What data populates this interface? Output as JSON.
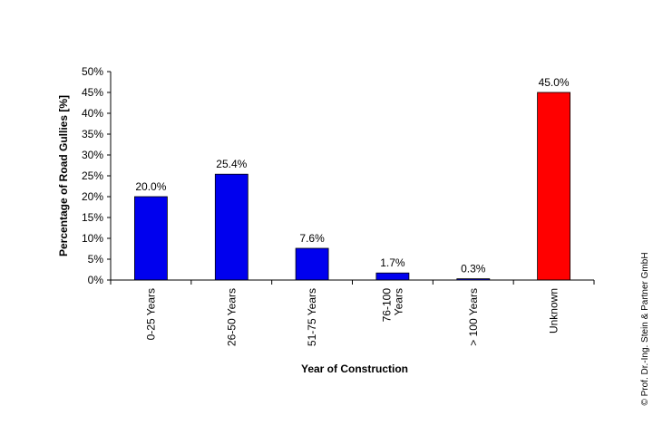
{
  "chart_data": {
    "type": "bar",
    "categories": [
      "0-25 Years",
      "26-50 Years",
      "51-75 Years",
      "76-100 Years",
      "> 100 Years",
      "Unknown"
    ],
    "category_lines": [
      [
        "0-25 Years"
      ],
      [
        "26-50 Years"
      ],
      [
        "51-75 Years"
      ],
      [
        "76-100",
        "Years"
      ],
      [
        "> 100 Years"
      ],
      [
        "Unknown"
      ]
    ],
    "values": [
      20.0,
      25.4,
      7.6,
      1.7,
      0.3,
      45.0
    ],
    "data_labels": [
      "20.0%",
      "25.4%",
      "7.6%",
      "1.7%",
      "0.3%",
      "45.0%"
    ],
    "bar_colors": [
      "#0000ee",
      "#0000ee",
      "#0000ee",
      "#0000ee",
      "#0000ee",
      "#ff0000"
    ],
    "xlabel": "Year of Construction",
    "ylabel": "Percentage of Road Gullies [%]",
    "ylim": [
      0,
      50
    ],
    "ytick_values": [
      0,
      5,
      10,
      15,
      20,
      25,
      30,
      35,
      40,
      45,
      50
    ],
    "ytick_labels": [
      "0%",
      "5%",
      "10%",
      "15%",
      "20%",
      "25%",
      "30%",
      "35%",
      "40%",
      "45%",
      "50%"
    ],
    "grid": false,
    "legend": "none"
  },
  "copyright": "© Prof. Dr.-Ing. Stein & Partner GmbH"
}
